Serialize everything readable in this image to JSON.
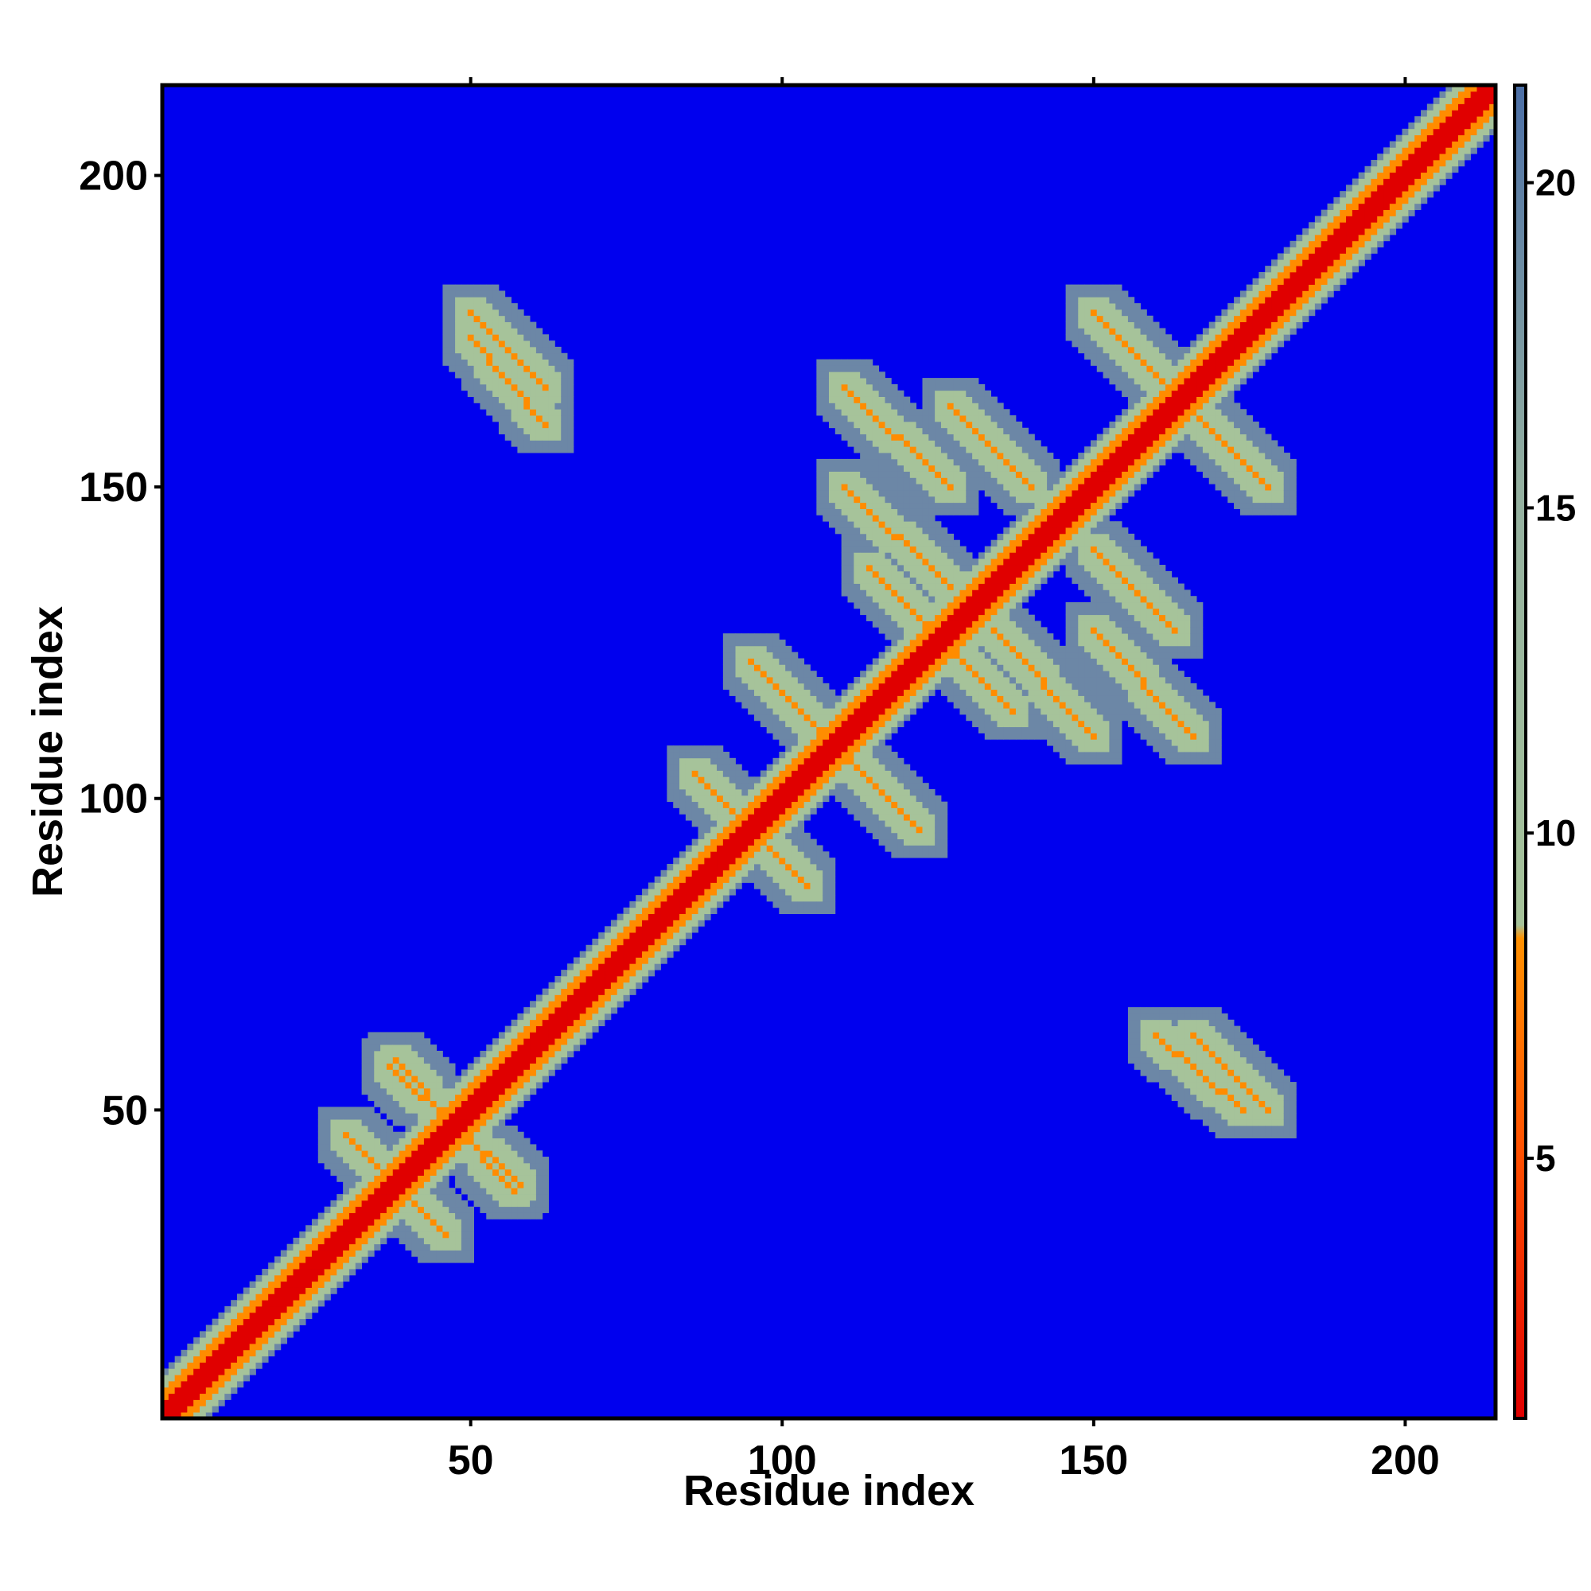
{
  "chart_data": {
    "type": "heatmap",
    "title": "",
    "xlabel": "Residue index",
    "ylabel": "Residue index",
    "xlim": [
      1,
      214
    ],
    "ylim": [
      1,
      214
    ],
    "x_ticks": [
      50,
      100,
      150,
      200
    ],
    "y_ticks": [
      50,
      100,
      150,
      200
    ],
    "x_tick_labels": [
      "50",
      "100",
      "150",
      "200"
    ],
    "y_tick_labels": [
      "50",
      "100",
      "150",
      "200"
    ],
    "colorbar": {
      "range": [
        1,
        21.5
      ],
      "ticks": [
        5,
        10,
        15,
        20
      ],
      "tick_labels": [
        "5",
        "10",
        "15",
        "20"
      ],
      "colors": {
        "near": "#e00000",
        "close": "#ff8c00",
        "mid": "#a6c39a",
        "far": "#6c87a6",
        "background": "#0000ee"
      }
    },
    "grid": false,
    "features": [
      {
        "kind": "diagonal",
        "range": [
          1,
          214
        ],
        "value": 3
      },
      {
        "kind": "antidiagonal",
        "i": [
          37,
          58
        ],
        "j": [
          57,
          38
        ],
        "value": 7
      },
      {
        "kind": "antidiagonal",
        "i": [
          30,
          42
        ],
        "j": [
          46,
          34
        ],
        "value": 7
      },
      {
        "kind": "antidiagonal",
        "i": [
          86,
          104
        ],
        "j": [
          104,
          86
        ],
        "value": 7
      },
      {
        "kind": "antidiagonal",
        "i": [
          95,
          122
        ],
        "j": [
          122,
          95
        ],
        "value": 7
      },
      {
        "kind": "antidiagonal",
        "i": [
          114,
          137
        ],
        "j": [
          137,
          114
        ],
        "value": 7
      },
      {
        "kind": "antidiagonal",
        "i": [
          127,
          140
        ],
        "j": [
          163,
          150
        ],
        "value": 7
      },
      {
        "kind": "antidiagonal",
        "i": [
          150,
          178
        ],
        "j": [
          178,
          150
        ],
        "value": 7
      },
      {
        "kind": "antidiagonal",
        "i": [
          160,
          174
        ],
        "j": [
          62,
          50
        ],
        "value": 7
      },
      {
        "kind": "antidiagonal",
        "i": [
          50,
          62
        ],
        "j": [
          178,
          166
        ],
        "value": 7
      },
      {
        "kind": "antidiagonal",
        "i": [
          150,
          166
        ],
        "j": [
          127,
          110
        ],
        "value": 7
      },
      {
        "kind": "antidiagonal",
        "i": [
          110,
          127
        ],
        "j": [
          150,
          134
        ],
        "value": 7
      }
    ]
  }
}
